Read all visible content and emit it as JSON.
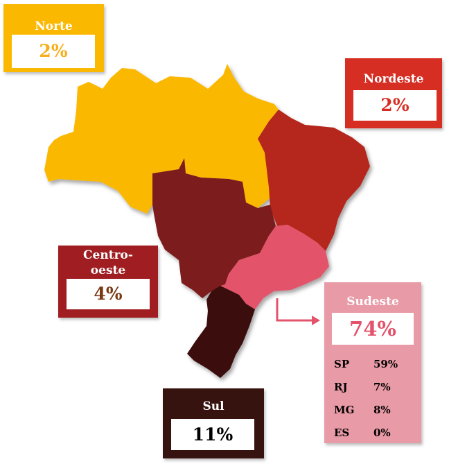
{
  "colors": {
    "norte": "#FBB800",
    "nordeste": "#B5261B",
    "centro_oeste": "#7D1A1C",
    "sudeste": "#E3536B",
    "sul": "#3B0E0F",
    "norte_box": "#FBB800",
    "nordeste_box": "#D72E24",
    "centro_oeste_box": "#A01E21",
    "sudeste_box": "#E89AA6",
    "sul_box": "#36130F",
    "norte_pct_text": "#F7AE1A",
    "nordeste_pct_text": "#D72E24",
    "centro_oeste_pct_text": "#7A3A14",
    "sudeste_pct_text": "#E3536B",
    "sul_pct_text": "#000000",
    "arrow": "#E3536B"
  },
  "regions": {
    "norte": {
      "name": "Norte",
      "pct": "2%"
    },
    "nordeste": {
      "name": "Nordeste",
      "pct": "2%"
    },
    "centro_oeste": {
      "name_line1": "Centro-",
      "name_line2": "oeste",
      "pct": "4%"
    },
    "sudeste": {
      "name": "Sudeste",
      "pct": "74%",
      "states": [
        {
          "code": "SP",
          "pct": "59%"
        },
        {
          "code": "RJ",
          "pct": "7%"
        },
        {
          "code": "MG",
          "pct": "8%"
        },
        {
          "code": "ES",
          "pct": "0%"
        }
      ]
    },
    "sul": {
      "name": "Sul",
      "pct": "11%"
    }
  }
}
